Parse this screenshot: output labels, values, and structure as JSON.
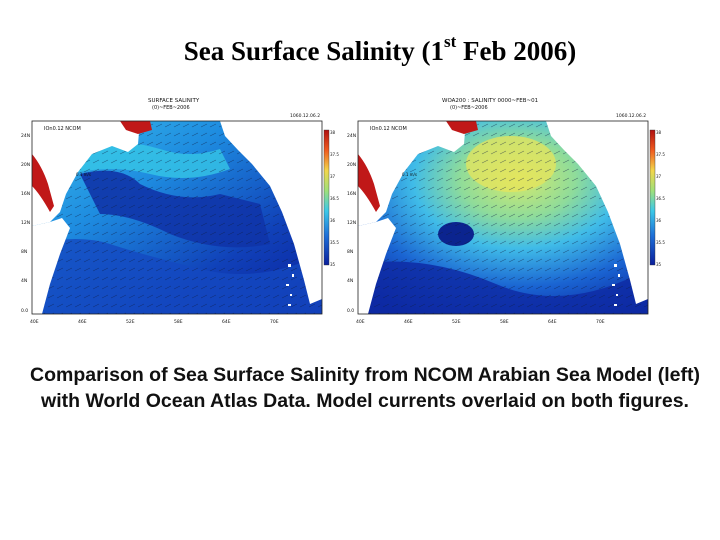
{
  "title": {
    "main": "Sea Surface Salinity  (1",
    "sup": "st",
    "rest": " Feb 2006)"
  },
  "panels": [
    {
      "header_line1": "SURFACE SALINITY",
      "header_line2": "(0)~FEB~2006",
      "model_label": "IOn0.12 NCOM",
      "date_stamp": "1060.12.06.2",
      "vector_scale": "0.1 m/s",
      "y_ticks": [
        "24N",
        "20N",
        "16N",
        "12N",
        "8N",
        "4N",
        "0.0"
      ],
      "x_ticks": [
        "40E",
        "46E",
        "52E",
        "58E",
        "64E",
        "70E"
      ],
      "colorbar_ticks": [
        "38",
        "37.5",
        "37",
        "36.5",
        "36",
        "35.5",
        "35"
      ]
    },
    {
      "header_line1": "WOA200 : SALINITY 0000~FEB~01",
      "header_line2": "(0)~FEB~2006",
      "model_label": "IOn0.12 NCOM",
      "date_stamp": "1060.12.06.2",
      "vector_scale": "0.1 m/s",
      "y_ticks": [
        "24N",
        "20N",
        "16N",
        "12N",
        "8N",
        "4N",
        "0.0"
      ],
      "x_ticks": [
        "40E",
        "46E",
        "52E",
        "58E",
        "64E",
        "70E"
      ],
      "colorbar_ticks": [
        "38",
        "37.5",
        "37",
        "36.5",
        "36",
        "35.5",
        "35"
      ]
    }
  ],
  "caption": "Comparison of Sea Surface Salinity from NCOM Arabian Sea Model (left) with World Ocean Atlas Data. Model currents overlaid on both figures.",
  "colors": {
    "land": "#ffffff",
    "salinity_low": "#0a1f9c",
    "salinity_mid": "#1e88e5",
    "salinity_high": "#f2d64b",
    "salinity_max": "#b01010"
  }
}
